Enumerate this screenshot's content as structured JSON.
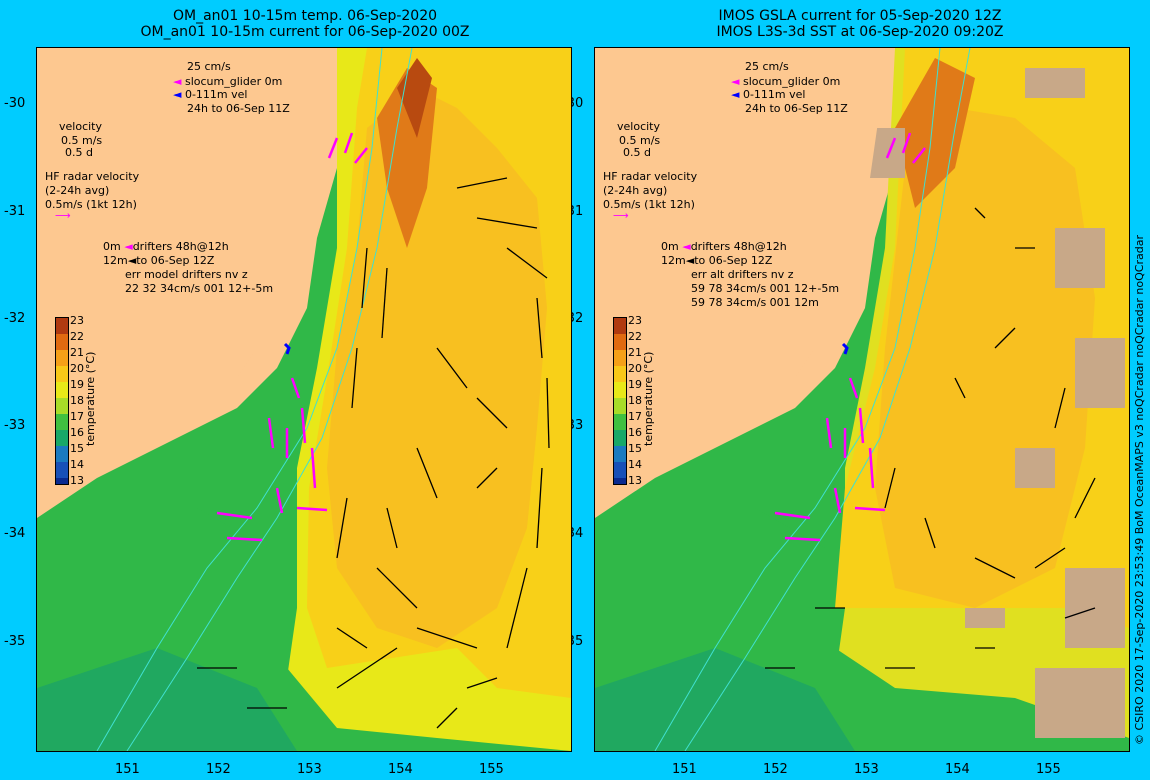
{
  "left_panel": {
    "title_line1": "OM_an01 10-15m temp. 06-Sep-2020",
    "title_line2": "OM_an01 10-15m current for 06-Sep-2020 00Z",
    "legend_scale": "25 cm/s",
    "legend_glider": "slocum_glider 0m",
    "legend_vel": "0-111m vel",
    "legend_time": "24h to 06-Sep 11Z",
    "velocity_title": "velocity",
    "velocity_scale": "0.5 m/s",
    "velocity_d": "0.5 d",
    "hf_title": "HF radar velocity",
    "hf_avg": "(2-24h avg)",
    "hf_scale": "0.5m/s (1kt 12h)",
    "drifter_0m": "0m",
    "drifter_label": "drifters 48h@12h",
    "drifter_12m": "12m",
    "drifter_time": "to 06-Sep 12Z",
    "err_line1": "err model drifters nv z",
    "err_line2": "22 32 34cm/s 001 12+-5m",
    "err_line3": ""
  },
  "right_panel": {
    "title_line1": "IMOS GSLA current for 05-Sep-2020 12Z",
    "title_line2": "IMOS L3S-3d SST at 06-Sep-2020 09:20Z",
    "legend_scale": "25 cm/s",
    "legend_glider": "slocum_glider 0m",
    "legend_vel": "0-111m vel",
    "legend_time": "24h to 06-Sep 11Z",
    "velocity_title": "velocity",
    "velocity_scale": "0.5 m/s",
    "velocity_d": "0.5 d",
    "hf_title": "HF radar velocity",
    "hf_avg": "(2-24h avg)",
    "hf_scale": "0.5m/s (1kt 12h)",
    "drifter_0m": "0m",
    "drifter_label": "drifters 48h@12h",
    "drifter_12m": "12m",
    "drifter_time": "to 06-Sep 12Z",
    "err_line1": "err alt drifters nv z",
    "err_line2": "59 78 34cm/s 001 12+-5m",
    "err_line3": "59 78 34cm/s 001 12m"
  },
  "y_ticks": [
    "-30",
    "-31",
    "-32",
    "-33",
    "-34",
    "-35"
  ],
  "x_ticks": [
    "151",
    "152",
    "153",
    "154",
    "155"
  ],
  "colorbar": {
    "title": "temperature (°C)",
    "labels": [
      "23",
      "22",
      "21",
      "20",
      "19",
      "18",
      "17",
      "16",
      "15",
      "14",
      "13"
    ],
    "colors": [
      "#b03a10",
      "#e06a10",
      "#f5a018",
      "#f8c818",
      "#e8e818",
      "#a8dc28",
      "#40c040",
      "#18a868",
      "#1a7ac0",
      "#1850b8",
      "#0a2a90"
    ]
  },
  "credit": "© CSIRO 2020   17-Sep-2020 23:53:49 BoM OceanMAPS v3 noQCradar noQCradar noQCradar",
  "colors": {
    "land": "#fdc890",
    "background": "#00ccff",
    "warm_core": "#f8c020",
    "shelf_cold": "#30b848",
    "magenta": "#ff00ff",
    "isobath": "#40e0d0",
    "cloud_mask": "#c8a888"
  }
}
